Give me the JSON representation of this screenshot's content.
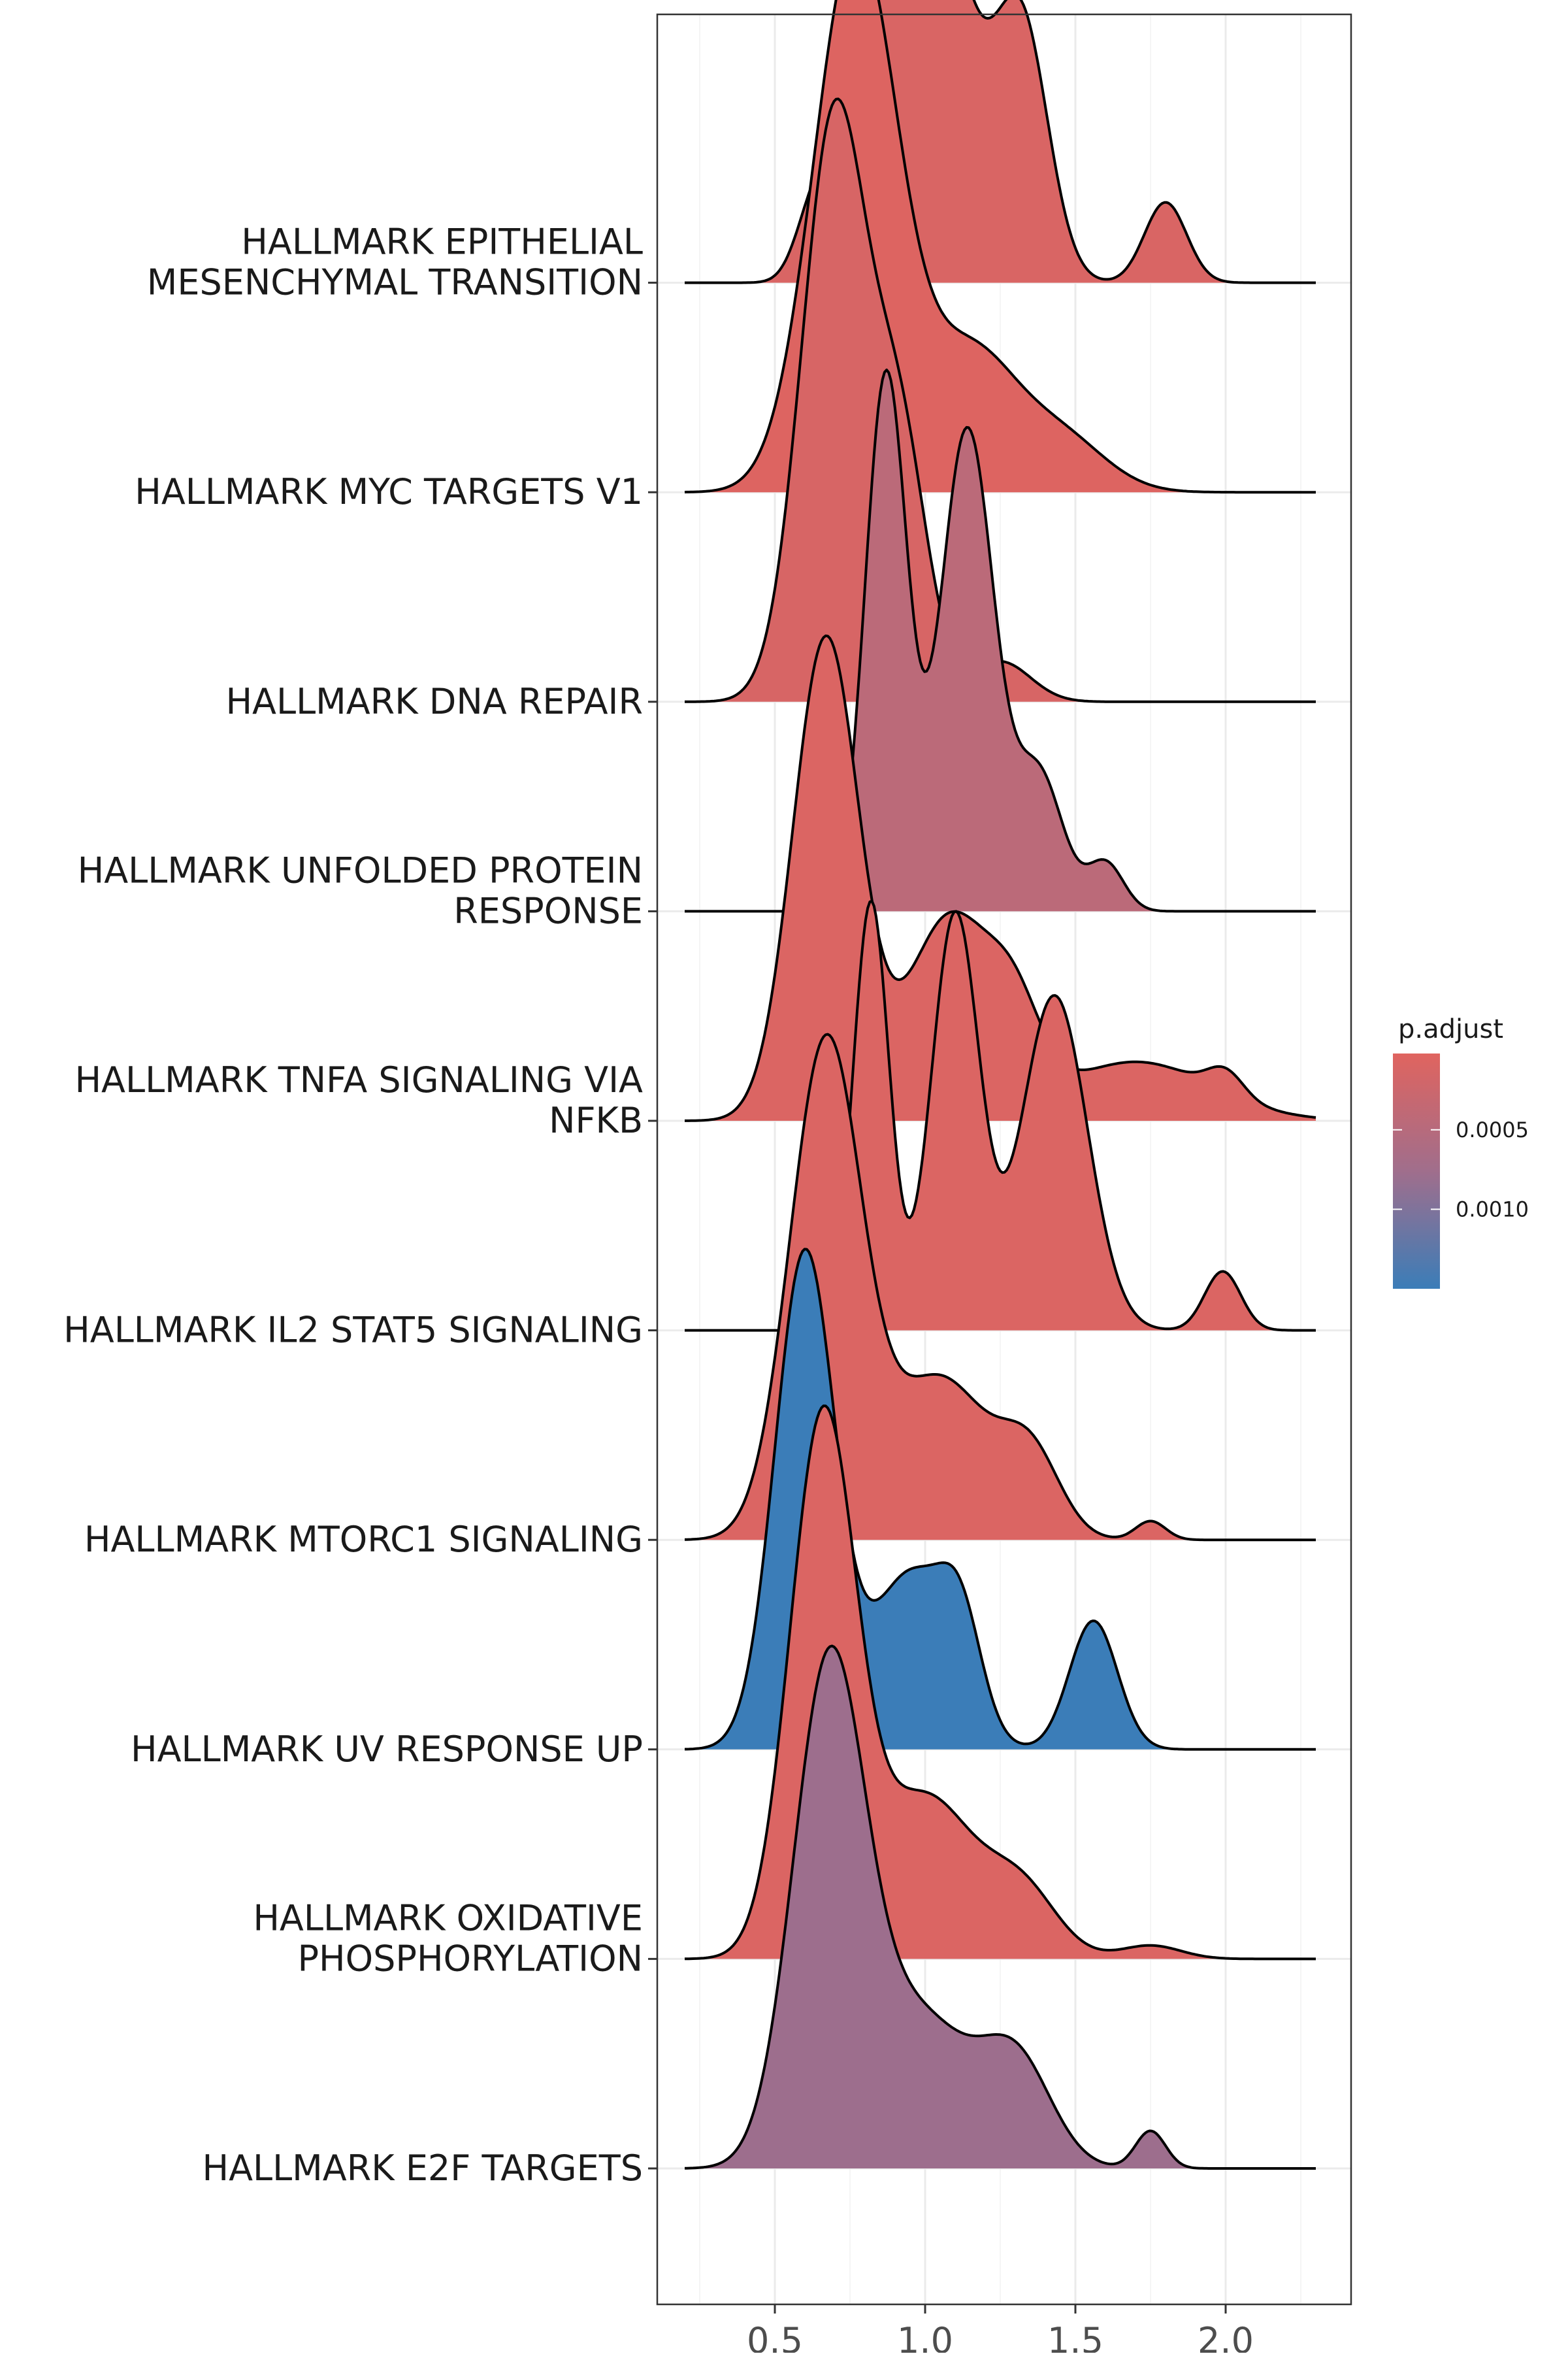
{
  "chart_data": {
    "type": "ridgeline",
    "title": "",
    "xlabel": "",
    "ylabel": "",
    "xlim": [
      0.09,
      2.39
    ],
    "x_ticks": [
      {
        "value": 0.5,
        "label": "0.5"
      },
      {
        "value": 1.0,
        "label": "1.0"
      },
      {
        "value": 1.5,
        "label": "1.5"
      },
      {
        "value": 2.0,
        "label": "2.0"
      }
    ],
    "grid": true,
    "categories": [
      "HALLMARK E2F TARGETS",
      "HALLMARK OXIDATIVE PHOSPHORYLATION",
      "HALLMARK UV RESPONSE UP",
      "HALLMARK MTORC1 SIGNALING",
      "HALLMARK IL2 STAT5 SIGNALING",
      "HALLMARK TNFA SIGNALING VIA NFKB",
      "HALLMARK UNFOLDED PROTEIN RESPONSE",
      "HALLMARK DNA REPAIR",
      "HALLMARK MYC TARGETS V1",
      "HALLMARK EPITHELIAL MESENCHYMAL TRANSITION"
    ],
    "category_lines": [
      [
        "HALLMARK E2F TARGETS"
      ],
      [
        "HALLMARK OXIDATIVE",
        "PHOSPHORYLATION"
      ],
      [
        "HALLMARK UV RESPONSE UP"
      ],
      [
        "HALLMARK MTORC1 SIGNALING"
      ],
      [
        "HALLMARK IL2 STAT5 SIGNALING"
      ],
      [
        "HALLMARK TNFA SIGNALING VIA",
        "NFKB"
      ],
      [
        "HALLMARK UNFOLDED PROTEIN",
        "RESPONSE"
      ],
      [
        "HALLMARK DNA REPAIR"
      ],
      [
        "HALLMARK MYC TARGETS V1"
      ],
      [
        "HALLMARK EPITHELIAL",
        "MESENCHYMAL TRANSITION"
      ]
    ],
    "p_adjust": [
      0.00078,
      8e-05,
      0.0015,
      8e-05,
      8e-05,
      8e-05,
      0.00045,
      0.00012,
      5e-05,
      0.0001
    ],
    "x_range": [
      0.2,
      2.3
    ],
    "series": [
      {
        "name": "HALLMARK E2F TARGETS",
        "peaks": [
          [
            0.68,
            0.12,
            1.85
          ],
          [
            0.98,
            0.16,
            0.55
          ],
          [
            1.3,
            0.12,
            0.4
          ],
          [
            1.75,
            0.05,
            0.14
          ]
        ]
      },
      {
        "name": "HALLMARK OXIDATIVE PHOSPHORYLATION",
        "peaks": [
          [
            0.66,
            0.11,
            2.0
          ],
          [
            1.0,
            0.16,
            0.6
          ],
          [
            1.32,
            0.12,
            0.25
          ],
          [
            1.75,
            0.1,
            0.05
          ]
        ]
      },
      {
        "name": "HALLMARK UV RESPONSE UP",
        "peaks": [
          [
            0.6,
            0.1,
            1.85
          ],
          [
            0.95,
            0.13,
            0.65
          ],
          [
            1.12,
            0.07,
            0.35
          ],
          [
            1.56,
            0.08,
            0.48
          ]
        ]
      },
      {
        "name": "HALLMARK MTORC1 SIGNALING",
        "peaks": [
          [
            0.67,
            0.12,
            1.85
          ],
          [
            1.05,
            0.16,
            0.6
          ],
          [
            1.35,
            0.1,
            0.3
          ],
          [
            1.75,
            0.05,
            0.07
          ]
        ]
      },
      {
        "name": "HALLMARK IL2 STAT5 SIGNALING",
        "peaks": [
          [
            0.82,
            0.06,
            1.6
          ],
          [
            1.1,
            0.08,
            1.55
          ],
          [
            1.43,
            0.11,
            1.25
          ],
          [
            1.99,
            0.06,
            0.22
          ]
        ]
      },
      {
        "name": "HALLMARK TNFA SIGNALING VIA NFKB",
        "peaks": [
          [
            0.67,
            0.11,
            1.8
          ],
          [
            1.08,
            0.14,
            0.75
          ],
          [
            1.3,
            0.09,
            0.3
          ],
          [
            1.7,
            0.25,
            0.22
          ],
          [
            2.0,
            0.06,
            0.09
          ]
        ]
      },
      {
        "name": "HALLMARK UNFOLDED PROTEIN RESPONSE",
        "peaks": [
          [
            0.87,
            0.07,
            2.0
          ],
          [
            1.14,
            0.09,
            1.8
          ],
          [
            1.38,
            0.08,
            0.5
          ],
          [
            1.6,
            0.06,
            0.18
          ]
        ]
      },
      {
        "name": "HALLMARK DNA REPAIR",
        "peaks": [
          [
            0.7,
            0.11,
            2.2
          ],
          [
            0.92,
            0.09,
            0.9
          ],
          [
            1.25,
            0.1,
            0.15
          ]
        ]
      },
      {
        "name": "HALLMARK MYC TARGETS V1",
        "peaks": [
          [
            0.77,
            0.14,
            2.05
          ],
          [
            1.15,
            0.15,
            0.5
          ],
          [
            1.45,
            0.15,
            0.2
          ]
        ]
      },
      {
        "name": "HALLMARK EPITHELIAL MESENCHYMAL TRANSITION",
        "peaks": [
          [
            0.85,
            0.1,
            1.5
          ],
          [
            1.05,
            0.12,
            1.3
          ],
          [
            1.32,
            0.09,
            0.95
          ],
          [
            1.8,
            0.07,
            0.3
          ],
          [
            0.63,
            0.06,
            0.25
          ]
        ]
      }
    ],
    "legend": {
      "title": "p.adjust",
      "position": "right",
      "ticks": [
        {
          "value": 0.0005,
          "label": "0.0005"
        },
        {
          "value": 0.001,
          "label": "0.0010"
        }
      ],
      "range": [
        2e-05,
        0.0015
      ],
      "color_low": "#E0645F",
      "color_high": "#3B7DB8"
    }
  }
}
